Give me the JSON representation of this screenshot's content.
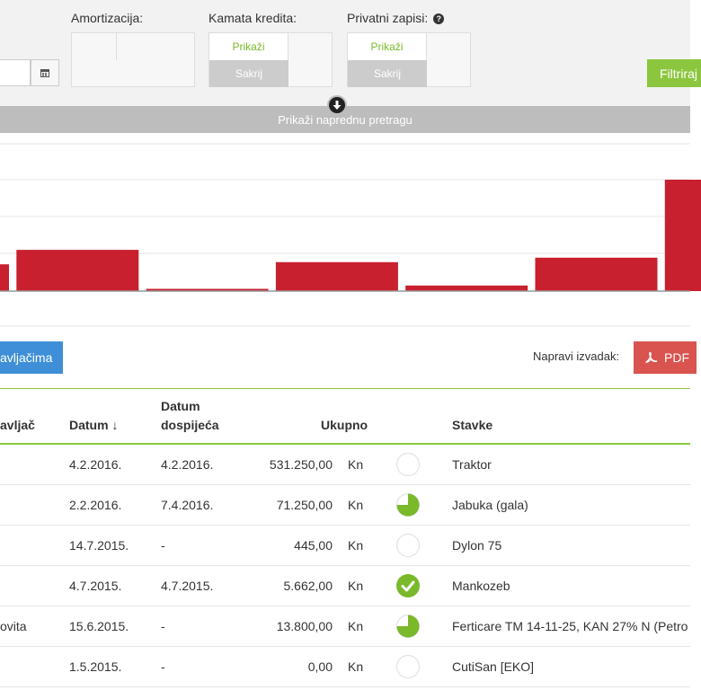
{
  "filters": {
    "amortization_label": "Amortizacija:",
    "interest_label": "Kamata kredita:",
    "private_label": "Privatni zapisi:",
    "show_label": "Prikaži",
    "hide_label": "Sakrij",
    "filter_button": "Filtriraj",
    "help_icon": "question-icon"
  },
  "advanced_search": {
    "label": "Prikaži naprednu pretragu"
  },
  "chart_data": {
    "type": "bar",
    "ylim": [
      0,
      100
    ],
    "values": [
      24,
      37,
      2,
      26,
      5,
      30,
      100
    ],
    "colors": {
      "bar": "#c8202f",
      "grid": "#e6e6e6",
      "axis": "#999999"
    },
    "grid": true
  },
  "actions": {
    "supplier_button": "avljačima",
    "statement_label": "Napravi izvadak:",
    "pdf_button": "PDF"
  },
  "table": {
    "headers": {
      "supplier": "avljač",
      "date": "Datum ↓",
      "due_line1": "Datum",
      "due_line2": "dospijeća",
      "total": "Ukupno",
      "items": "Stavke"
    },
    "rows": [
      {
        "supplier": "",
        "date": "4.2.2016.",
        "due": "4.2.2016.",
        "amount": "531.250,00",
        "currency": "Kn",
        "status": "empty",
        "item": "Traktor"
      },
      {
        "supplier": "",
        "date": "2.2.2016.",
        "due": "7.4.2016.",
        "amount": "71.250,00",
        "currency": "Kn",
        "status": "three-quarter",
        "item": "Jabuka (gala)"
      },
      {
        "supplier": "",
        "date": "14.7.2015.",
        "due": "-",
        "amount": "445,00",
        "currency": "Kn",
        "status": "empty",
        "item": "Dylon 75"
      },
      {
        "supplier": "",
        "date": "4.7.2015.",
        "due": "4.7.2015.",
        "amount": "5.662,00",
        "currency": "Kn",
        "status": "paid",
        "item": "Mankozeb"
      },
      {
        "supplier": "ovita",
        "date": "15.6.2015.",
        "due": "-",
        "amount": "13.800,00",
        "currency": "Kn",
        "status": "three-quarter",
        "item": "Ferticare TM 14-11-25, KAN 27% N (Petro"
      },
      {
        "supplier": "",
        "date": "1.5.2015.",
        "due": "-",
        "amount": "0,00",
        "currency": "Kn",
        "status": "empty",
        "item": "CutiSan [EKO]"
      }
    ],
    "colors": {
      "accent": "#8cc63e",
      "status_fill": "#7ab929"
    }
  }
}
